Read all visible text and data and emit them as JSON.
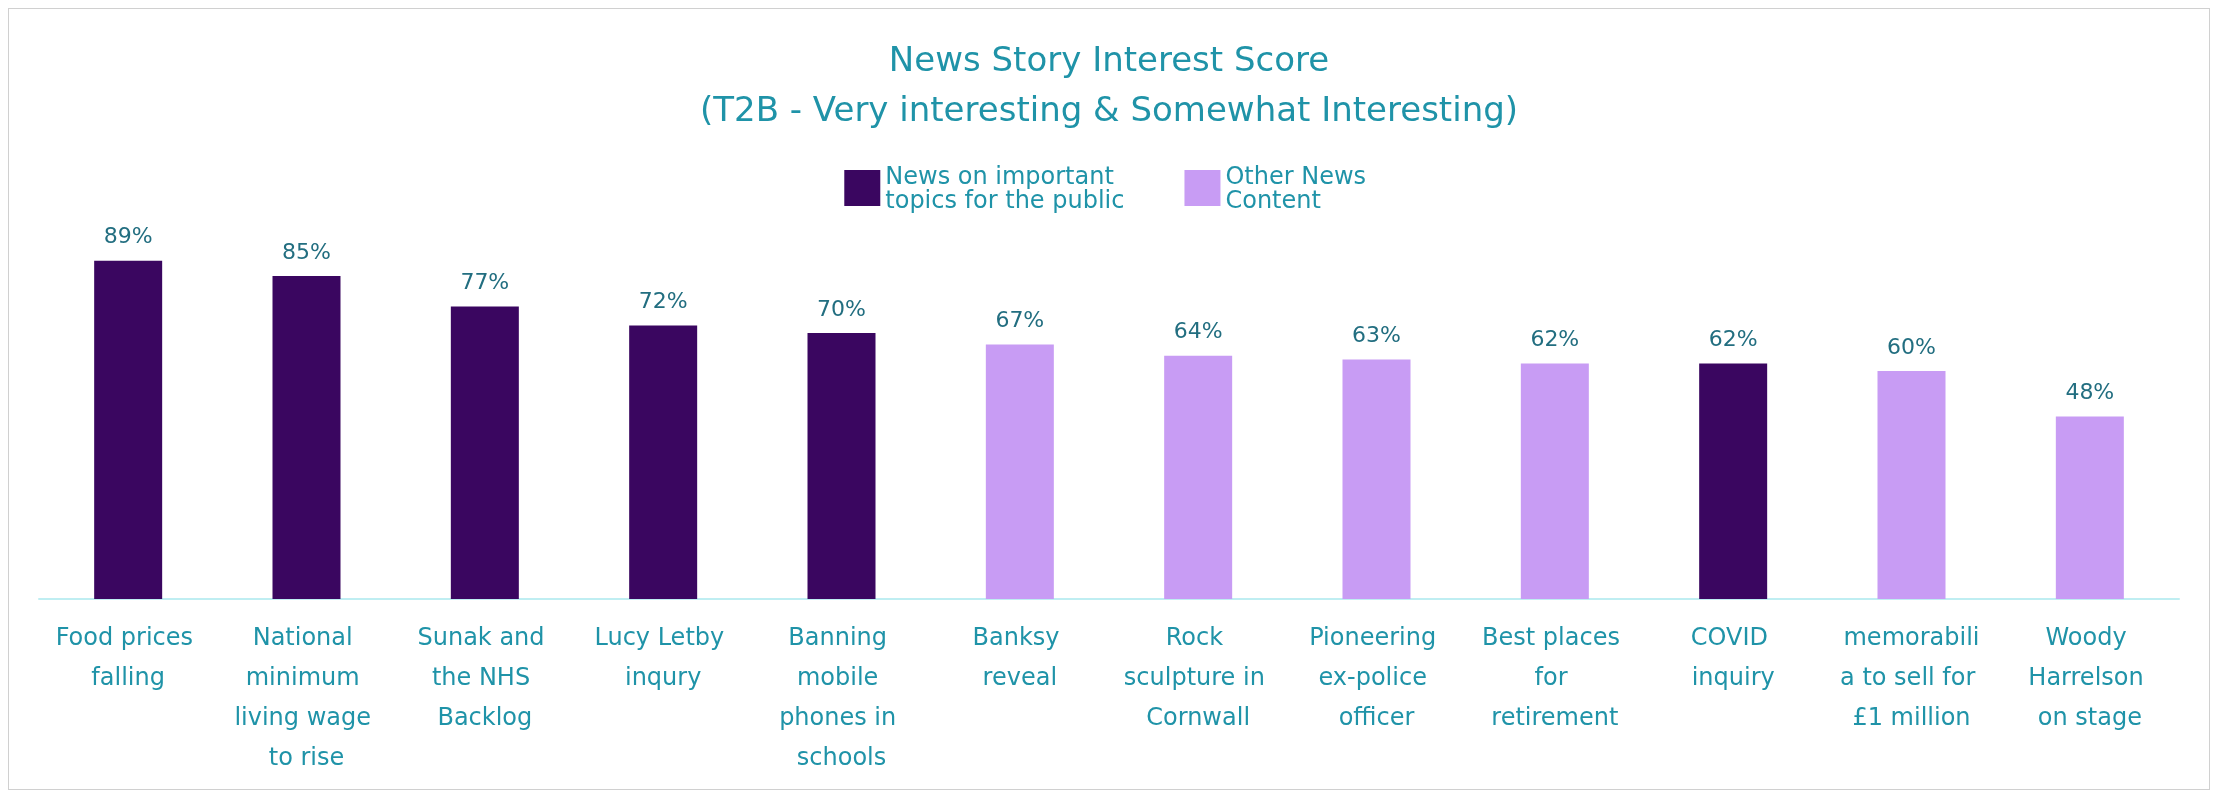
{
  "chart_data": {
    "type": "bar",
    "title": "News Story Interest Score",
    "subtitle": "(T2B - Very interesting & Somewhat Interesting)",
    "categories": [
      "Food prices falling",
      "National minimum living wage to rise",
      "Sunak and the NHS Backlog",
      "Lucy Letby inqury",
      "Banning mobile phones in schools",
      "Banksy reveal",
      "Rock sculpture in Cornwall",
      "Pioneering ex-police officer",
      "Best places for retirement",
      "COVID inquiry",
      "memorabilia to sell for £1 million",
      "Woody Harrelson on stage"
    ],
    "series": [
      {
        "name": "News on important topics for the public",
        "color": "#3a0660",
        "values": [
          89,
          85,
          77,
          72,
          70,
          null,
          null,
          null,
          null,
          62,
          null,
          null
        ],
        "value_labels": [
          "89%",
          "85%",
          "77%",
          "72%",
          "70%",
          null,
          null,
          null,
          null,
          "62%",
          null,
          null
        ]
      },
      {
        "name": "Other News Content",
        "color": "#c89cf4",
        "values": [
          null,
          null,
          null,
          null,
          null,
          67,
          64,
          63,
          62,
          null,
          60,
          48
        ],
        "value_labels": [
          null,
          null,
          null,
          null,
          null,
          "67%",
          "64%",
          "63%",
          "62%",
          null,
          "60%",
          "48%"
        ]
      }
    ],
    "legend": "top",
    "grid": false
  }
}
